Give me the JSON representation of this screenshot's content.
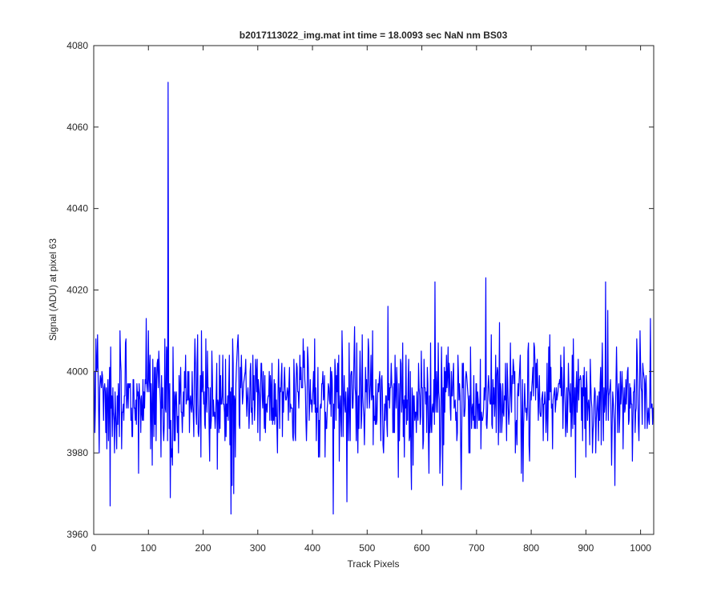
{
  "chart_data": {
    "type": "line",
    "title": "b2017113022_img.mat int time = 18.0093 sec  NaN nm BS03",
    "xlabel": "Track Pixels",
    "ylabel": "Signal (ADU) at pixel 63",
    "xlim": [
      0,
      1024
    ],
    "ylim": [
      3960,
      4080
    ],
    "xticks": [
      0,
      100,
      200,
      300,
      400,
      500,
      600,
      700,
      800,
      900,
      1000
    ],
    "yticks": [
      3960,
      3980,
      4000,
      4020,
      4040,
      4060,
      4080
    ],
    "grid": false,
    "line_color": "#0000ff",
    "series": [
      {
        "name": "",
        "x_start": 1,
        "x_step": 1,
        "n_points": 1024,
        "baseline": 3993,
        "noise_sd": 7,
        "seed": 2017113022,
        "notable_points": [
          {
            "x": 30,
            "y": 3967
          },
          {
            "x": 136,
            "y": 4071
          },
          {
            "x": 140,
            "y": 3969
          },
          {
            "x": 251,
            "y": 3965
          },
          {
            "x": 256,
            "y": 3970
          },
          {
            "x": 438,
            "y": 3965
          },
          {
            "x": 463,
            "y": 3968
          },
          {
            "x": 538,
            "y": 4016
          },
          {
            "x": 624,
            "y": 4022
          },
          {
            "x": 638,
            "y": 3972
          },
          {
            "x": 672,
            "y": 3971
          },
          {
            "x": 717,
            "y": 4023
          },
          {
            "x": 785,
            "y": 3973
          },
          {
            "x": 936,
            "y": 4022
          }
        ]
      }
    ]
  }
}
